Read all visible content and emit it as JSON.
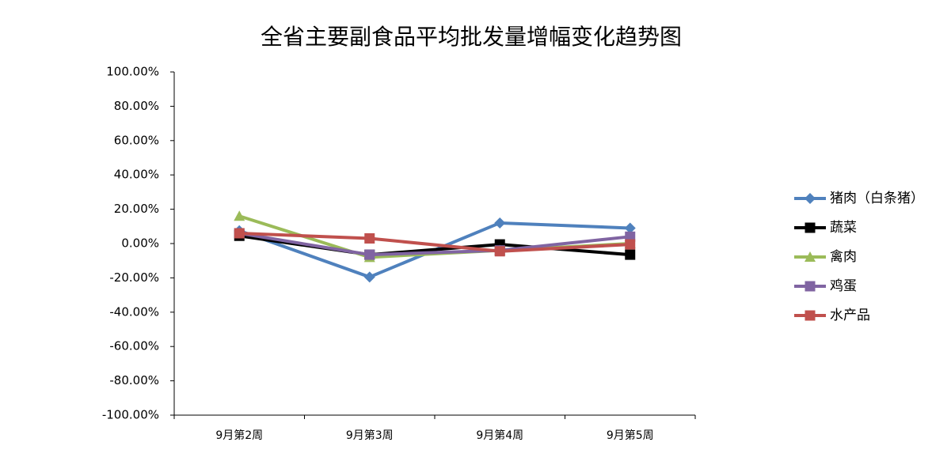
{
  "chart_data": {
    "type": "line",
    "title": "全省主要副食品平均批发量增幅变化趋势图",
    "categories": [
      "9月第2周",
      "9月第3周",
      "9月第4周",
      "9月第5周"
    ],
    "series": [
      {
        "name": "猪肉（白条猪）",
        "color": "#4f81bd",
        "marker": "diamond",
        "values": [
          7.5,
          -19.5,
          12,
          9
        ]
      },
      {
        "name": "蔬菜",
        "color": "#000000",
        "marker": "square",
        "values": [
          4.5,
          -6.5,
          -0.5,
          -6.5
        ]
      },
      {
        "name": "禽肉",
        "color": "#9bbb59",
        "marker": "triangle",
        "values": [
          16,
          -8,
          -4,
          0
        ]
      },
      {
        "name": "鸡蛋",
        "color": "#8064a2",
        "marker": "square",
        "values": [
          6,
          -6.5,
          -4,
          4
        ]
      },
      {
        "name": "水产品",
        "color": "#c0504d",
        "marker": "square",
        "values": [
          6,
          3,
          -4.5,
          -0.5
        ]
      }
    ],
    "ylim": [
      -100,
      100
    ],
    "yticks": [
      {
        "value": 100,
        "label": "100.00%"
      },
      {
        "value": 80,
        "label": "80.00%"
      },
      {
        "value": 60,
        "label": "60.00%"
      },
      {
        "value": 40,
        "label": "40.00%"
      },
      {
        "value": 20,
        "label": "20.00%"
      },
      {
        "value": 0,
        "label": "0.00%"
      },
      {
        "value": -20,
        "label": "-20.00%"
      },
      {
        "value": -40,
        "label": "-40.00%"
      },
      {
        "value": -60,
        "label": "-60.00%"
      },
      {
        "value": -80,
        "label": "-80.00%"
      },
      {
        "value": -100,
        "label": "-100.00%"
      }
    ],
    "grid": false,
    "legend": "right"
  }
}
